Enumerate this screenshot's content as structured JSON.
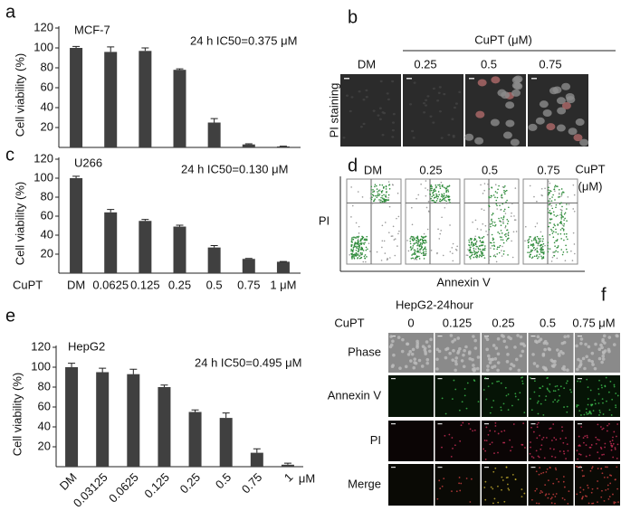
{
  "panel_labels": [
    "a",
    "b",
    "c",
    "d",
    "e",
    "f"
  ],
  "chart_data": [
    {
      "type": "bar",
      "label": "MCF-7",
      "annotation": "24 h  IC50=0.375 μM",
      "ylabel": "Cell viability (%)",
      "categories": [
        null,
        null,
        null,
        null,
        null,
        null,
        null
      ],
      "values": [
        100,
        96,
        97,
        78,
        25,
        3,
        1
      ],
      "errors": [
        1.5,
        5,
        3,
        1,
        4,
        0.6,
        0.3
      ],
      "ylim": [
        0,
        120
      ],
      "yticks": [
        20,
        40,
        60,
        80,
        100,
        120
      ],
      "color": "#404040"
    },
    {
      "type": "bar",
      "label": "U266",
      "annotation": "24 h  IC50=0.130 μM",
      "ylabel": "Cell viability (%)",
      "xlabel": "CuPT",
      "categories": [
        "DM",
        "0.0625",
        "0.125",
        "0.25",
        "0.5",
        "0.75",
        "1 μM"
      ],
      "values": [
        100,
        64,
        55,
        49,
        27,
        15,
        12
      ],
      "errors": [
        2,
        3,
        1.5,
        1.5,
        2,
        0.5,
        0.3
      ],
      "ylim": [
        0,
        120
      ],
      "yticks": [
        20,
        40,
        60,
        80,
        100,
        120
      ],
      "color": "#404040"
    },
    {
      "type": "bar",
      "label": "HepG2",
      "annotation": "24 h IC50=0.495 μM",
      "ylabel": "Cell viability (%)",
      "x_unit": "μM",
      "categories": [
        "DM",
        "0.03125",
        "0.0625",
        "0.125",
        "0.25",
        "0.5",
        "0.75",
        "1"
      ],
      "values": [
        100,
        95,
        93,
        80,
        55,
        49,
        14,
        2
      ],
      "errors": [
        4,
        4,
        5,
        2,
        2,
        5,
        4,
        1.5
      ],
      "ylim": [
        0,
        120
      ],
      "yticks": [
        20,
        40,
        60,
        80,
        100,
        120
      ],
      "color": "#404040"
    }
  ],
  "staining": {
    "header": "CuPT (μM)",
    "columns": [
      "DM",
      "0.25",
      "0.5",
      "0.75"
    ],
    "row_label": "PI staining"
  },
  "flow": {
    "columns": [
      "DM",
      "0.25",
      "0.5",
      "0.75"
    ],
    "header": [
      "CuPT",
      "(μM)"
    ],
    "ylabel": "PI",
    "xlabel": "Annexin V"
  },
  "imaging": {
    "title": "HepG2-24hour",
    "row_header": "CuPT",
    "columns": [
      "0",
      "0.125",
      "0.25",
      "0.5",
      "0.75 μM"
    ],
    "rows": [
      "Phase",
      "Annexin V",
      "PI",
      "Merge"
    ]
  }
}
